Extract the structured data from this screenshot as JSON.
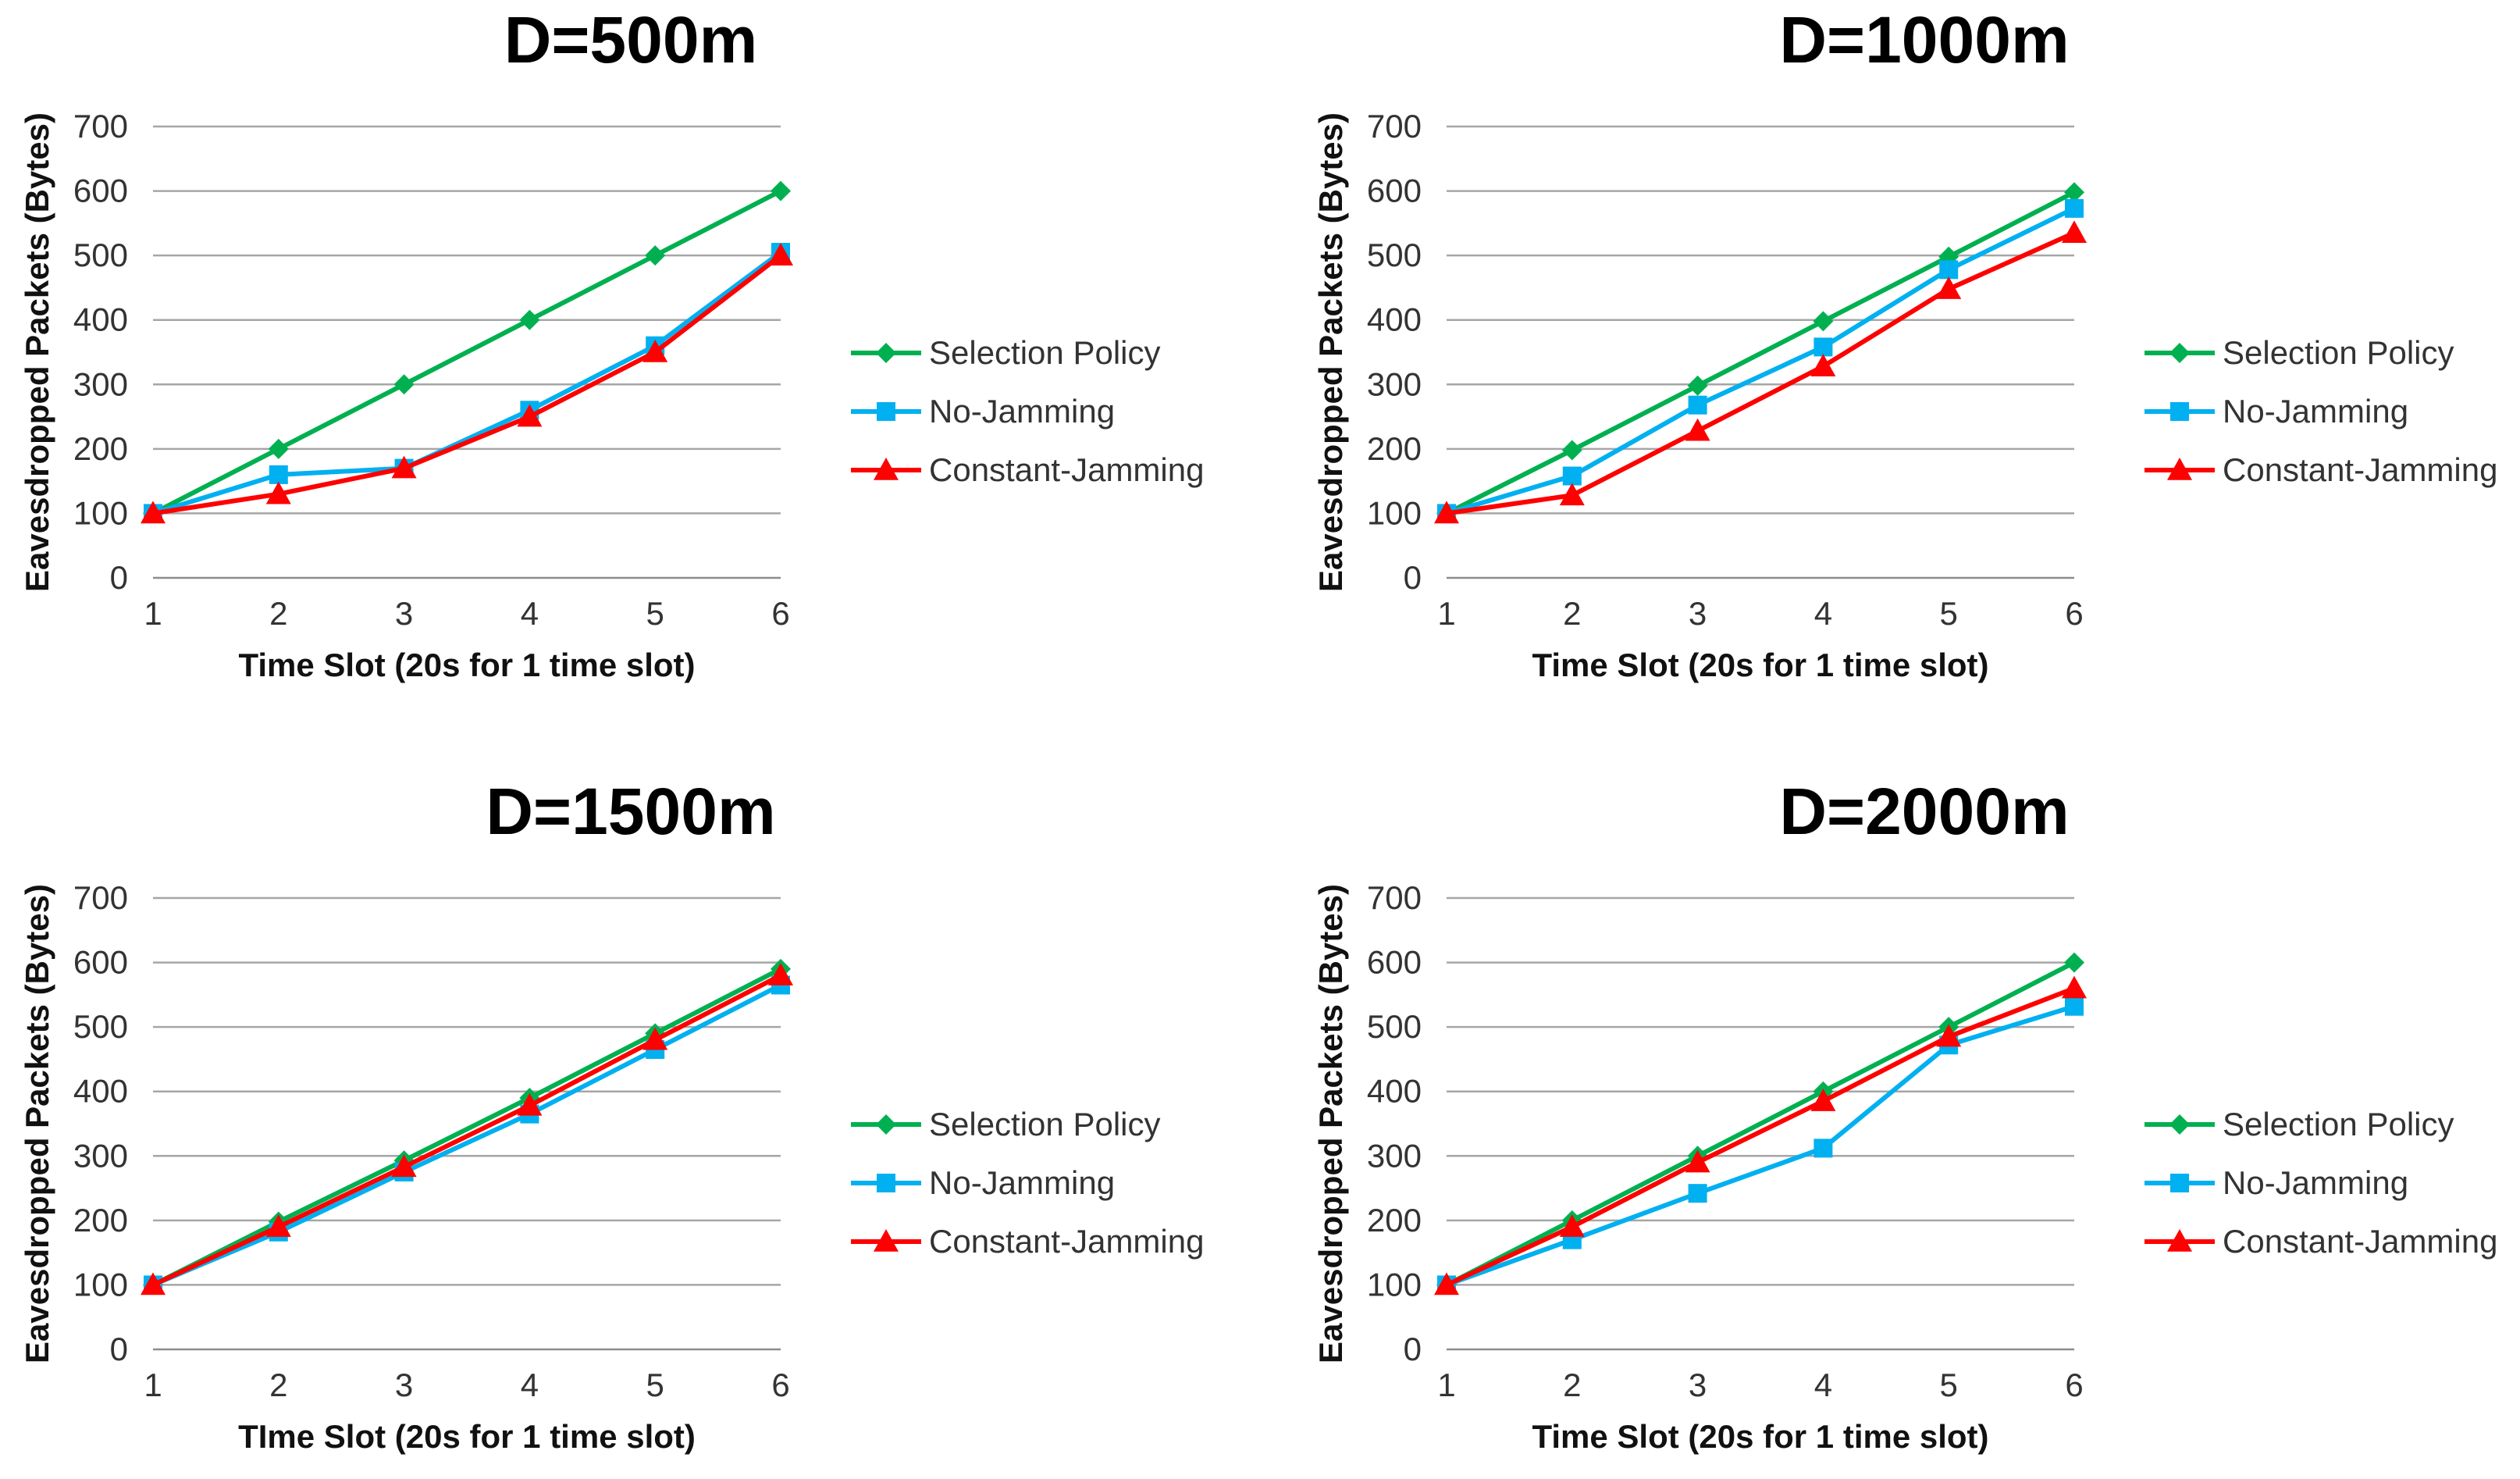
{
  "chart_data": [
    {
      "type": "line",
      "title": "D=500m",
      "xlabel": "Time Slot (20s for 1 time slot)",
      "ylabel": "Eavesdropped Packets (Bytes)",
      "categories": [
        "1",
        "2",
        "3",
        "4",
        "5",
        "6"
      ],
      "ylim": [
        0,
        700
      ],
      "yticks": [
        "0",
        "100",
        "200",
        "300",
        "400",
        "500",
        "600",
        "700"
      ],
      "grid": true,
      "legend": "right",
      "series": [
        {
          "name": "Selection Policy",
          "color": "#00b050",
          "marker": "diamond",
          "values": [
            100,
            200,
            300,
            400,
            500,
            600
          ]
        },
        {
          "name": "No-Jamming",
          "color": "#00b0f0",
          "marker": "square",
          "values": [
            100,
            160,
            170,
            260,
            360,
            505
          ]
        },
        {
          "name": "Constant-Jamming",
          "color": "#ff0000",
          "marker": "triangle",
          "values": [
            100,
            130,
            170,
            250,
            350,
            500
          ]
        }
      ]
    },
    {
      "type": "line",
      "title": "D=1000m",
      "xlabel": "Time Slot (20s for 1 time slot)",
      "ylabel": "Eavesdropped Packets (Bytes)",
      "categories": [
        "1",
        "2",
        "3",
        "4",
        "5",
        "6"
      ],
      "ylim": [
        0,
        700
      ],
      "yticks": [
        "0",
        "100",
        "200",
        "300",
        "400",
        "500",
        "600",
        "700"
      ],
      "grid": true,
      "legend": "right",
      "series": [
        {
          "name": "Selection Policy",
          "color": "#00b050",
          "marker": "diamond",
          "values": [
            100,
            198,
            298,
            398,
            498,
            598
          ]
        },
        {
          "name": "No-Jamming",
          "color": "#00b0f0",
          "marker": "square",
          "values": [
            100,
            158,
            268,
            358,
            478,
            573
          ]
        },
        {
          "name": "Constant-Jamming",
          "color": "#ff0000",
          "marker": "triangle",
          "values": [
            100,
            128,
            228,
            328,
            448,
            535
          ]
        }
      ]
    },
    {
      "type": "line",
      "title": "D=1500m",
      "xlabel": "TIme Slot (20s for 1 time slot)",
      "ylabel": "Eavesdropped Packets (Bytes)",
      "categories": [
        "1",
        "2",
        "3",
        "4",
        "5",
        "6"
      ],
      "ylim": [
        0,
        700
      ],
      "yticks": [
        "0",
        "100",
        "200",
        "300",
        "400",
        "500",
        "600",
        "700"
      ],
      "grid": true,
      "legend": "right",
      "series": [
        {
          "name": "Selection Policy",
          "color": "#00b050",
          "marker": "diamond",
          "values": [
            100,
            198,
            293,
            390,
            490,
            590
          ]
        },
        {
          "name": "No-Jamming",
          "color": "#00b0f0",
          "marker": "square",
          "values": [
            100,
            182,
            275,
            365,
            465,
            565
          ]
        },
        {
          "name": "Constant-Jamming",
          "color": "#ff0000",
          "marker": "triangle",
          "values": [
            100,
            190,
            283,
            378,
            480,
            580
          ]
        }
      ]
    },
    {
      "type": "line",
      "title": "D=2000m",
      "xlabel": "Time Slot (20s for 1 time slot)",
      "ylabel": "Eavesdropped Packets (Bytes)",
      "categories": [
        "1",
        "2",
        "3",
        "4",
        "5",
        "6"
      ],
      "ylim": [
        0,
        700
      ],
      "yticks": [
        "0",
        "100",
        "200",
        "300",
        "400",
        "500",
        "600",
        "700"
      ],
      "grid": true,
      "legend": "right",
      "series": [
        {
          "name": "Selection Policy",
          "color": "#00b050",
          "marker": "diamond",
          "values": [
            100,
            200,
            300,
            400,
            500,
            600
          ]
        },
        {
          "name": "No-Jamming",
          "color": "#00b0f0",
          "marker": "square",
          "values": [
            100,
            170,
            242,
            312,
            472,
            532
          ]
        },
        {
          "name": "Constant-Jamming",
          "color": "#ff0000",
          "marker": "triangle",
          "values": [
            100,
            190,
            290,
            385,
            485,
            560
          ]
        }
      ]
    }
  ]
}
